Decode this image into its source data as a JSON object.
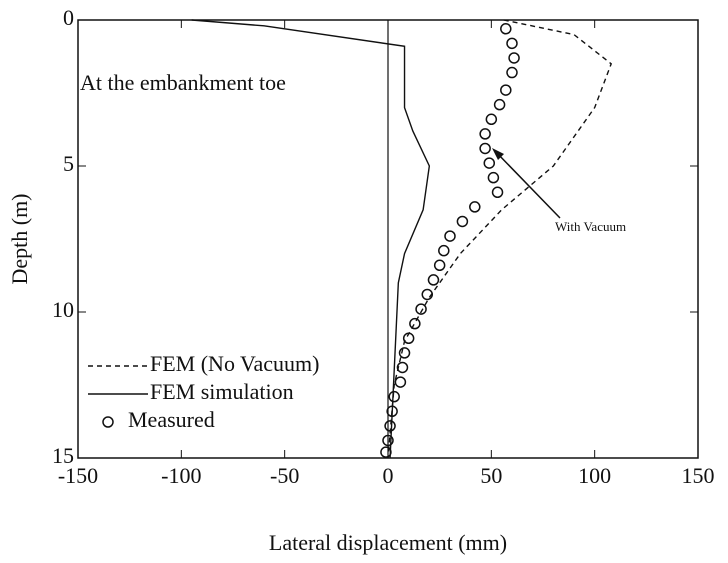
{
  "chart_data": {
    "type": "line",
    "xlabel": "Lateral displacement (mm)",
    "ylabel": "Depth (m)",
    "annotations": [
      "At the embankment toe",
      "With Vacuum"
    ],
    "xlim": [
      -150,
      150
    ],
    "xticks": [
      -150,
      -100,
      -50,
      0,
      50,
      100,
      150
    ],
    "ylim": [
      15,
      0
    ],
    "yticks": [
      0,
      5,
      10,
      15
    ],
    "legend": "lower left",
    "series": [
      {
        "name": "FEM (No Vacuum)",
        "color": "#111111",
        "style": "dashed",
        "x": [
          56,
          90,
          108,
          100,
          80,
          55,
          35,
          20,
          8,
          3,
          0
        ],
        "values": [
          0,
          0.5,
          1.5,
          3,
          5,
          6.5,
          8,
          9.5,
          11,
          12.5,
          15
        ]
      },
      {
        "name": "FEM simulation",
        "color": "#111111",
        "style": "solid",
        "x": [
          -95,
          -60,
          8,
          8,
          12,
          20,
          17,
          8,
          5,
          4,
          3,
          2,
          1
        ],
        "values": [
          0,
          0.2,
          0.9,
          3,
          3.8,
          5,
          6.5,
          8,
          9,
          10.5,
          12,
          13.5,
          15
        ]
      },
      {
        "name": "Measured",
        "color": "#111111",
        "style": "markers",
        "x": [
          57,
          60,
          61,
          60,
          57,
          54,
          50,
          47,
          47,
          49,
          51,
          53,
          42,
          36,
          30,
          27,
          25,
          22,
          19,
          16,
          13,
          10,
          8,
          7,
          6,
          3,
          2,
          1,
          0,
          -1
        ],
        "values": [
          0.3,
          0.8,
          1.3,
          1.8,
          2.4,
          2.9,
          3.4,
          3.9,
          4.4,
          4.9,
          5.4,
          5.9,
          6.4,
          6.9,
          7.4,
          7.9,
          8.4,
          8.9,
          9.4,
          9.9,
          10.4,
          10.9,
          11.4,
          11.9,
          12.4,
          12.9,
          13.4,
          13.9,
          14.4,
          14.8
        ]
      }
    ]
  }
}
